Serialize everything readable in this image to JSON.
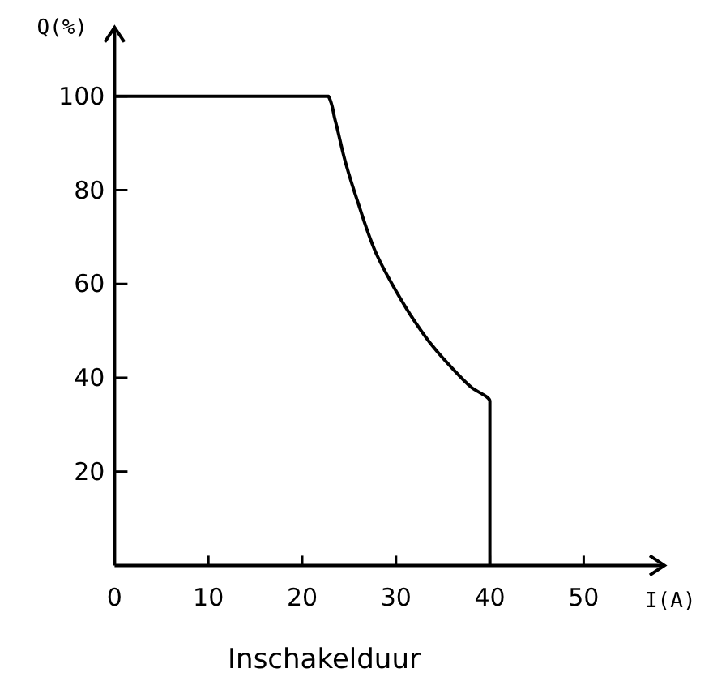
{
  "chart_data": {
    "type": "line",
    "xlabel": "I(A)",
    "ylabel": "Q(%)",
    "x": [
      0,
      22.8,
      23.5,
      24.6,
      26,
      28,
      30,
      32,
      34,
      36,
      38,
      40,
      40
    ],
    "series": [
      {
        "color": "#000000",
        "values": [
          100,
          100,
          95,
          86,
          77,
          66,
          58.5,
          52,
          46.5,
          42,
          38,
          35,
          0
        ]
      }
    ],
    "xlim": [
      0,
      58.6
    ],
    "ylim": [
      0,
      114.7
    ],
    "xticks": [
      0,
      10,
      20,
      30,
      40,
      50
    ],
    "yticks": [
      20,
      40,
      60,
      80,
      100
    ],
    "grid": false,
    "annotations": [
      "Inschakelduur"
    ]
  }
}
